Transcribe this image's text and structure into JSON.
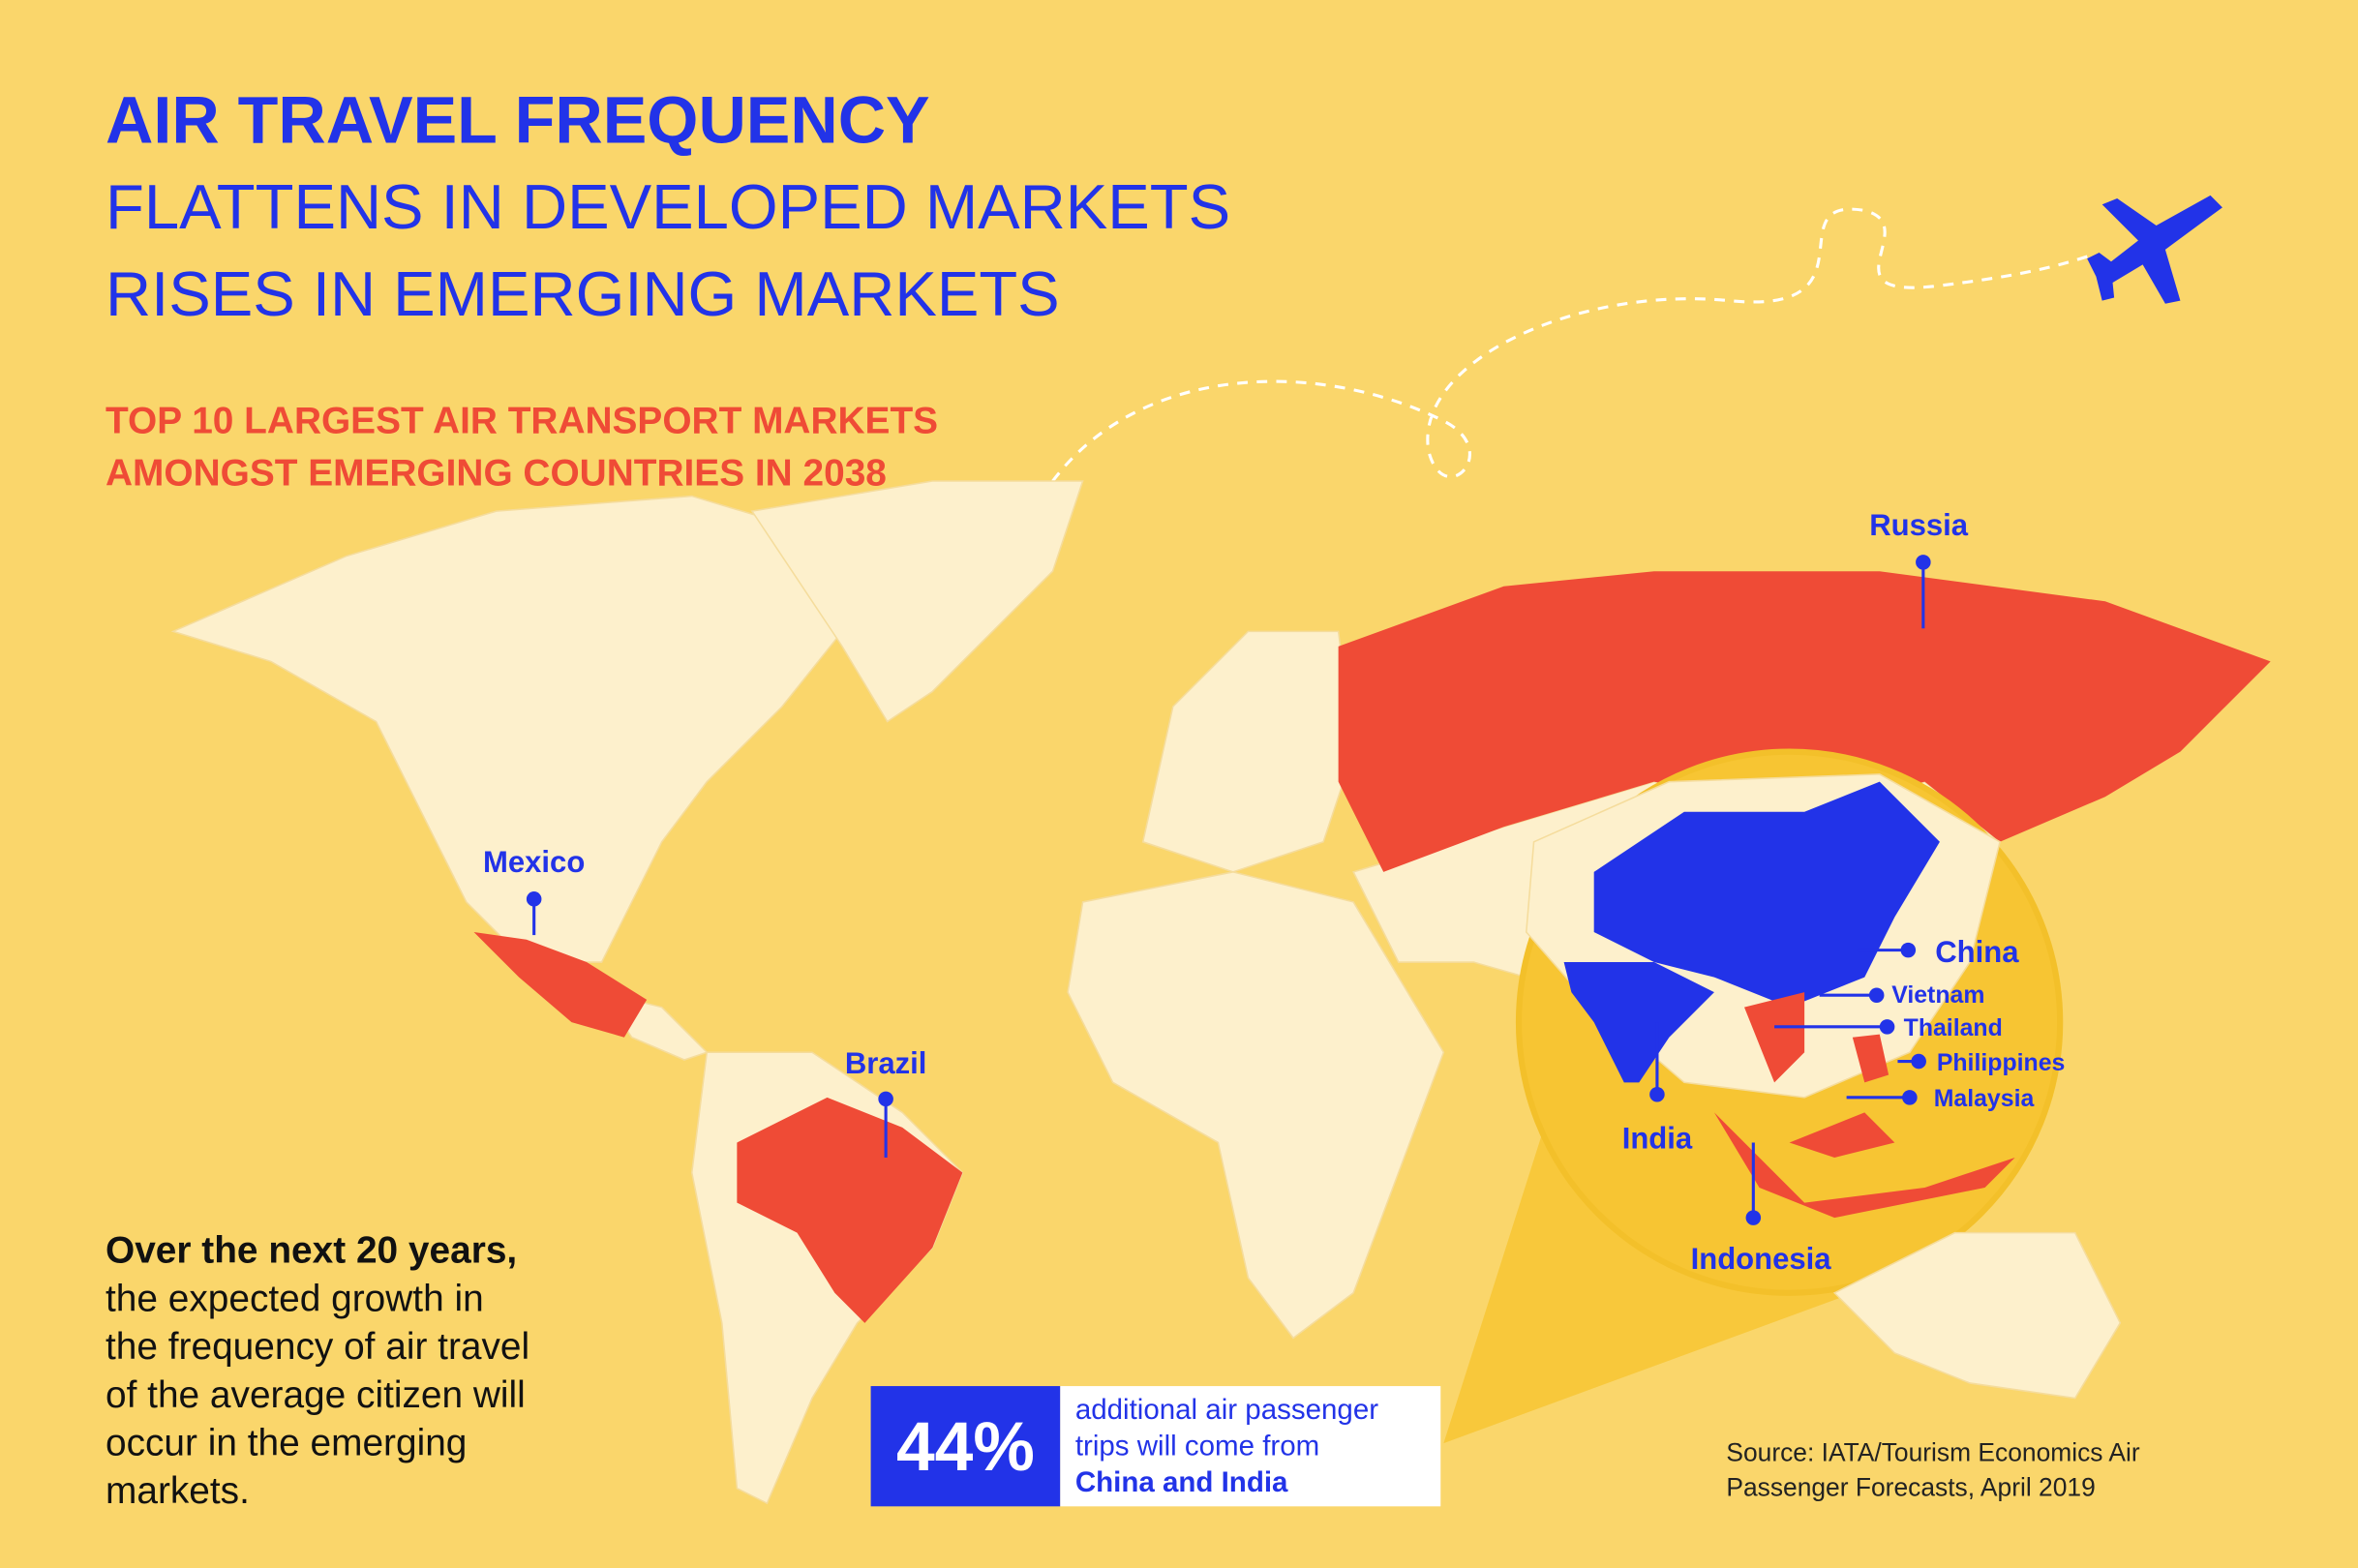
{
  "header": {
    "title": "AIR TRAVEL FREQUENCY",
    "lines": [
      "FLATTENS IN DEVELOPED MARKETS",
      "RISES IN EMERGING MARKETS"
    ]
  },
  "subtitle": [
    "TOP 10 LARGEST AIR TRANSPORT MARKETS",
    "AMONGST EMERGING COUNTRIES IN 2038"
  ],
  "map_labels": [
    "Russia",
    "Mexico",
    "Brazil",
    "China",
    "Vietnam",
    "Thailand",
    "Philippines",
    "Malaysia",
    "India",
    "Indonesia"
  ],
  "body": {
    "lead": "Over the next 20 years,",
    "lines": [
      "the expected growth in",
      "the frequency of air travel",
      "of the average citizen will",
      "occur in the emerging",
      "markets."
    ]
  },
  "callout": {
    "value": "44%",
    "lines": [
      "additional air passenger",
      "trips will come from"
    ],
    "emphasis": "China and India"
  },
  "source": [
    "Source: IATA/Tourism Economics Air",
    "Passenger Forecasts, April 2019"
  ]
}
